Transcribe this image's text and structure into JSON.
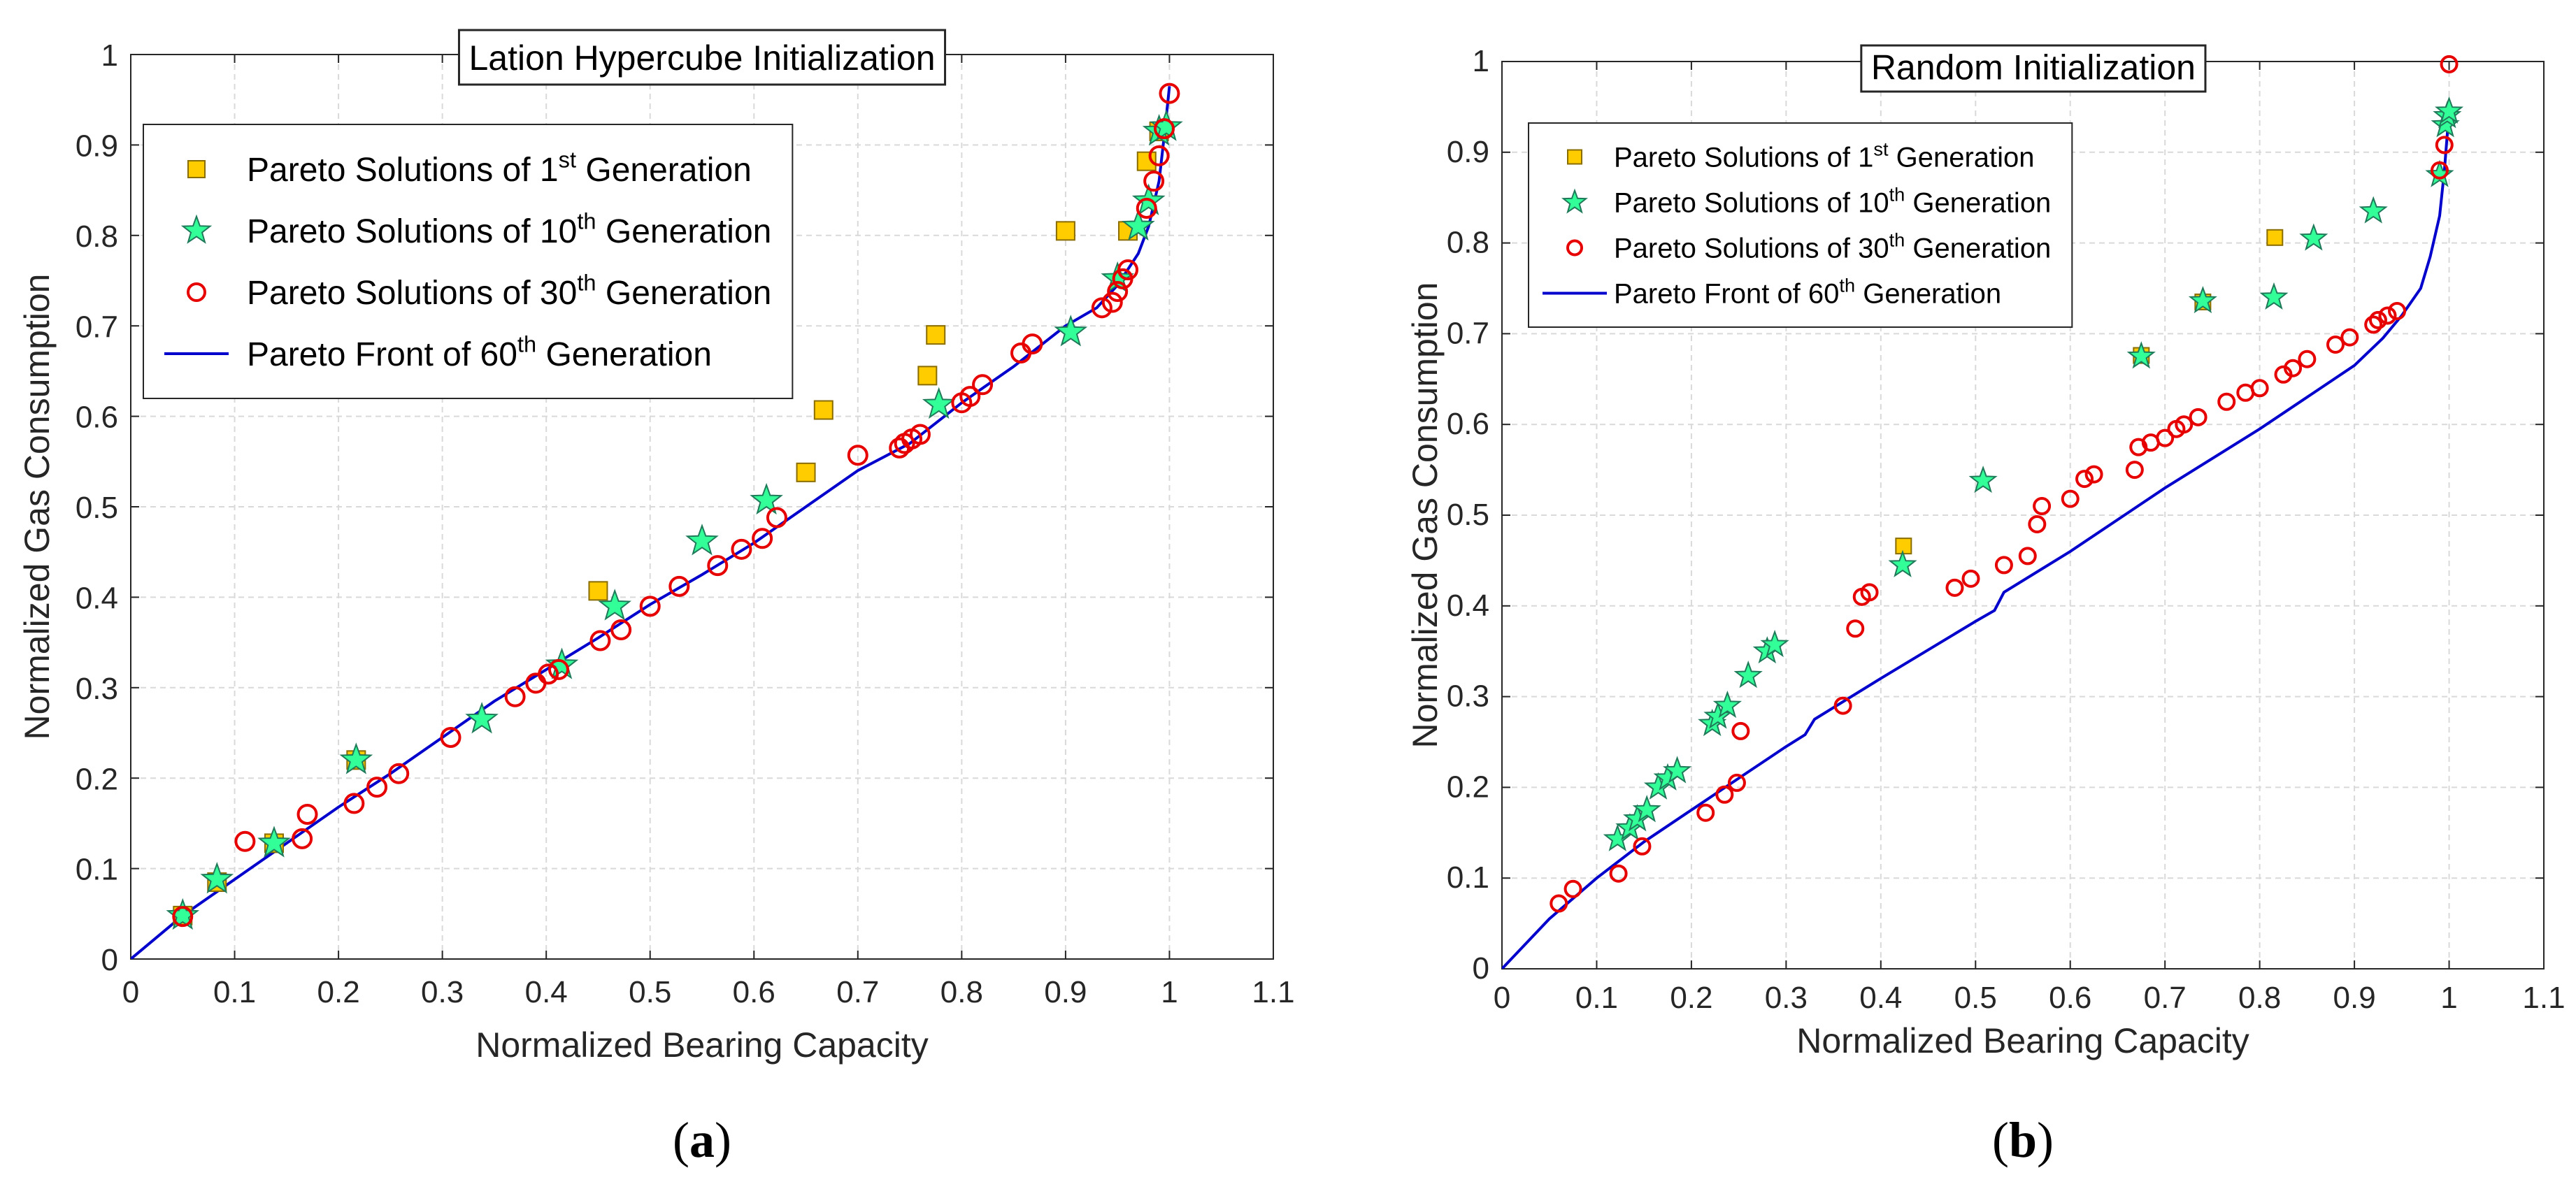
{
  "colors": {
    "square_fill": "#ffcc00",
    "square_stroke": "#8a6d00",
    "star_fill": "#33ff99",
    "star_stroke": "#1f7a5a",
    "circle_stroke": "#e60000",
    "front_line": "#0000cc"
  },
  "chart_data": [
    {
      "type": "scatter",
      "caption_label": "a",
      "title": "Lation Hypercube Initialization",
      "xlabel": "Normalized Bearing Capacity",
      "ylabel": "Normalized Gas Consumption",
      "xlim": [
        0,
        1.1
      ],
      "ylim": [
        0,
        1
      ],
      "xticks": [
        0,
        0.1,
        0.2,
        0.3,
        0.4,
        0.5,
        0.6,
        0.7,
        0.8,
        0.9,
        1,
        1.1
      ],
      "xtick_labels": [
        "0",
        "0.1",
        "0.2",
        "0.3",
        "0.4",
        "0.5",
        "0.6",
        "0.7",
        "0.8",
        "0.9",
        "1",
        "1.1"
      ],
      "yticks": [
        0,
        0.1,
        0.2,
        0.3,
        0.4,
        0.5,
        0.6,
        0.7,
        0.8,
        0.9,
        1
      ],
      "ytick_labels": [
        "0",
        "0.1",
        "0.2",
        "0.3",
        "0.4",
        "0.5",
        "0.6",
        "0.7",
        "0.8",
        "0.9",
        "1"
      ],
      "grid": true,
      "legend_position": "top-left",
      "series": [
        {
          "name": "Pareto Solutions of 1st Generation",
          "legend": {
            "pre": "Pareto Solutions of 1",
            "sup": "st",
            "post": "  Generation"
          },
          "marker": "square",
          "x": [
            0.05,
            0.083,
            0.138,
            0.217,
            0.45,
            0.65,
            0.667,
            0.767,
            0.775,
            0.9,
            0.96,
            0.978,
            0.99
          ],
          "y": [
            0.048,
            0.085,
            0.128,
            0.22,
            0.407,
            0.538,
            0.607,
            0.645,
            0.69,
            0.805,
            0.805,
            0.882,
            0.915
          ]
        },
        {
          "name": "Pareto Solutions of 10th Generation",
          "legend": {
            "pre": "Pareto Solutions of 10",
            "sup": "th",
            "post": " Generation"
          },
          "marker": "star",
          "x": [
            0.05,
            0.083,
            0.138,
            0.217,
            0.338,
            0.415,
            0.466,
            0.55,
            0.612,
            0.778,
            0.905,
            0.95,
            0.97,
            0.98,
            0.99,
            0.997
          ],
          "y": [
            0.048,
            0.088,
            0.128,
            0.22,
            0.265,
            0.325,
            0.39,
            0.462,
            0.507,
            0.613,
            0.693,
            0.752,
            0.81,
            0.838,
            0.915,
            0.92
          ]
        },
        {
          "name": "Pareto Solutions of 30th Generation",
          "legend": {
            "pre": "Pareto Solutions of 30",
            "sup": "th",
            "post": " Generation"
          },
          "marker": "circle",
          "x": [
            0.05,
            0.11,
            0.165,
            0.17,
            0.215,
            0.237,
            0.258,
            0.308,
            0.37,
            0.39,
            0.402,
            0.412,
            0.452,
            0.472,
            0.5,
            0.528,
            0.565,
            0.588,
            0.608,
            0.622,
            0.7,
            0.74,
            0.745,
            0.752,
            0.76,
            0.8,
            0.808,
            0.82,
            0.857,
            0.868,
            0.935,
            0.945,
            0.95,
            0.955,
            0.96,
            0.978,
            0.985,
            0.99,
            0.995,
            1.0
          ],
          "y": [
            0.047,
            0.13,
            0.133,
            0.16,
            0.172,
            0.19,
            0.205,
            0.245,
            0.29,
            0.305,
            0.315,
            0.32,
            0.352,
            0.364,
            0.39,
            0.412,
            0.435,
            0.453,
            0.465,
            0.488,
            0.557,
            0.565,
            0.57,
            0.575,
            0.58,
            0.615,
            0.622,
            0.635,
            0.67,
            0.68,
            0.72,
            0.726,
            0.738,
            0.752,
            0.762,
            0.83,
            0.86,
            0.888,
            0.918,
            0.957
          ]
        },
        {
          "name": "Pareto Front of 60th Generation",
          "legend": {
            "pre": "Pareto Front of 60",
            "sup": "th",
            "post": " Generation"
          },
          "marker": "line",
          "x": [
            0,
            0.05,
            0.1,
            0.15,
            0.2,
            0.25,
            0.3,
            0.35,
            0.4,
            0.45,
            0.5,
            0.55,
            0.6,
            0.65,
            0.7,
            0.75,
            0.8,
            0.85,
            0.9,
            0.93,
            0.95,
            0.97,
            0.98,
            0.99,
            0.995,
            1.0
          ],
          "y": [
            0,
            0.048,
            0.088,
            0.128,
            0.168,
            0.205,
            0.245,
            0.285,
            0.32,
            0.355,
            0.392,
            0.425,
            0.46,
            0.5,
            0.54,
            0.57,
            0.615,
            0.655,
            0.7,
            0.72,
            0.745,
            0.78,
            0.81,
            0.86,
            0.91,
            0.965
          ]
        }
      ]
    },
    {
      "type": "scatter",
      "caption_label": "b",
      "title": "Random Initialization",
      "xlabel": "Normalized Bearing Capacity",
      "ylabel": "Normalized Gas Consumption",
      "xlim": [
        0,
        1.1
      ],
      "ylim": [
        0,
        1
      ],
      "xticks": [
        0,
        0.1,
        0.2,
        0.3,
        0.4,
        0.5,
        0.6,
        0.7,
        0.8,
        0.9,
        1,
        1.1
      ],
      "xtick_labels": [
        "0",
        "0.1",
        "0.2",
        "0.3",
        "0.4",
        "0.5",
        "0.6",
        "0.7",
        "0.8",
        "0.9",
        "1",
        "1.1"
      ],
      "yticks": [
        0,
        0.1,
        0.2,
        0.3,
        0.4,
        0.5,
        0.6,
        0.7,
        0.8,
        0.9,
        1
      ],
      "ytick_labels": [
        "0",
        "0.1",
        "0.2",
        "0.3",
        "0.4",
        "0.5",
        "0.6",
        "0.7",
        "0.8",
        "0.9",
        "1"
      ],
      "grid": true,
      "legend_position": "top-left",
      "series": [
        {
          "name": "Pareto Solutions of 1st Generation",
          "legend": {
            "pre": "Pareto Solutions of 1",
            "sup": "st",
            "post": " Generation"
          },
          "marker": "square",
          "x": [
            0.424,
            0.675,
            0.74,
            0.816
          ],
          "y": [
            0.466,
            0.676,
            0.735,
            0.806
          ]
        },
        {
          "name": "Pareto Solutions of 10th Generation",
          "legend": {
            "pre": "Pareto Solutions of 10",
            "sup": "th",
            "post": " Generation"
          },
          "marker": "star",
          "x": [
            0.122,
            0.135,
            0.143,
            0.153,
            0.165,
            0.175,
            0.185,
            0.222,
            0.228,
            0.238,
            0.26,
            0.28,
            0.288,
            0.423,
            0.508,
            0.675,
            0.74,
            0.815,
            0.857,
            0.92,
            0.99,
            0.996,
            0.998,
            1.0
          ],
          "y": [
            0.143,
            0.155,
            0.165,
            0.175,
            0.2,
            0.21,
            0.218,
            0.27,
            0.278,
            0.29,
            0.323,
            0.35,
            0.357,
            0.445,
            0.538,
            0.675,
            0.736,
            0.74,
            0.805,
            0.835,
            0.875,
            0.93,
            0.94,
            0.945
          ]
        },
        {
          "name": "Pareto Solutions of 30th Generation",
          "legend": {
            "pre": "Pareto Solutions of 30",
            "sup": "th",
            "post": " Generation"
          },
          "marker": "circle",
          "x": [
            0.06,
            0.075,
            0.123,
            0.148,
            0.215,
            0.235,
            0.248,
            0.252,
            0.36,
            0.373,
            0.38,
            0.388,
            0.478,
            0.495,
            0.53,
            0.555,
            0.565,
            0.57,
            0.6,
            0.615,
            0.625,
            0.668,
            0.672,
            0.685,
            0.7,
            0.712,
            0.72,
            0.735,
            0.765,
            0.785,
            0.8,
            0.825,
            0.835,
            0.85,
            0.88,
            0.895,
            0.92,
            0.925,
            0.935,
            0.945,
            0.99,
            0.995,
            1.0
          ],
          "y": [
            0.072,
            0.088,
            0.105,
            0.135,
            0.172,
            0.192,
            0.205,
            0.262,
            0.29,
            0.375,
            0.41,
            0.415,
            0.42,
            0.43,
            0.445,
            0.455,
            0.49,
            0.51,
            0.518,
            0.54,
            0.545,
            0.55,
            0.575,
            0.58,
            0.585,
            0.595,
            0.6,
            0.608,
            0.625,
            0.635,
            0.64,
            0.655,
            0.662,
            0.672,
            0.688,
            0.696,
            0.71,
            0.715,
            0.72,
            0.725,
            0.88,
            0.908,
            0.997
          ]
        },
        {
          "name": "Pareto Front of 60th Generation",
          "legend": {
            "pre": "Pareto Front of 60",
            "sup": "th",
            "post": " Generation"
          },
          "marker": "line",
          "x": [
            0,
            0.05,
            0.1,
            0.15,
            0.2,
            0.25,
            0.3,
            0.32,
            0.33,
            0.4,
            0.5,
            0.52,
            0.53,
            0.6,
            0.7,
            0.8,
            0.9,
            0.93,
            0.95,
            0.97,
            0.98,
            0.99,
            0.995,
            1.0
          ],
          "y": [
            0,
            0.055,
            0.1,
            0.14,
            0.175,
            0.21,
            0.245,
            0.258,
            0.275,
            0.32,
            0.383,
            0.395,
            0.415,
            0.46,
            0.53,
            0.595,
            0.665,
            0.695,
            0.72,
            0.75,
            0.785,
            0.83,
            0.88,
            0.945
          ]
        }
      ]
    }
  ]
}
